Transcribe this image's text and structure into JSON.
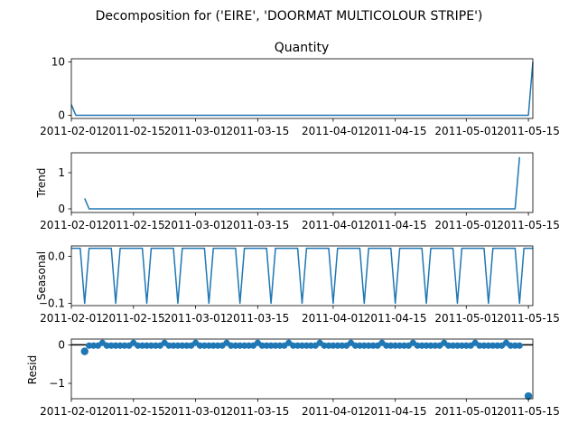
{
  "figure": {
    "suptitle": "Decomposition for ('EIRE', 'DOORMAT MULTICOLOUR STRIPE')"
  },
  "colors": {
    "series": "#1f77b4",
    "axis": "#000000",
    "background": "#ffffff"
  },
  "chart_data": [
    {
      "type": "line",
      "panel": "observed",
      "title": "Quantity",
      "ylabel": "",
      "xlim": [
        "2011-02-01",
        "2011-05-16"
      ],
      "ylim": [
        -0.6,
        10.6
      ],
      "yticks": [
        0,
        10
      ],
      "xticks": [
        "2011-02-01",
        "2011-02-15",
        "2011-03-01",
        "2011-03-15",
        "2011-04-01",
        "2011-04-15",
        "2011-05-01",
        "2011-05-15"
      ],
      "grid": false,
      "points": [
        [
          "2011-02-01",
          2
        ],
        [
          "2011-02-02",
          0
        ],
        [
          "2011-05-15",
          0
        ],
        [
          "2011-05-16",
          10
        ]
      ]
    },
    {
      "type": "line",
      "panel": "trend",
      "title": "",
      "ylabel": "Trend",
      "xlim": [
        "2011-02-01",
        "2011-05-16"
      ],
      "ylim": [
        -0.1,
        1.55
      ],
      "yticks": [
        0,
        1
      ],
      "xticks": [
        "2011-02-01",
        "2011-02-15",
        "2011-03-01",
        "2011-03-15",
        "2011-04-01",
        "2011-04-15",
        "2011-05-01",
        "2011-05-15"
      ],
      "grid": false,
      "points": [
        [
          "2011-02-04",
          0.29
        ],
        [
          "2011-02-05",
          0
        ],
        [
          "2011-05-12",
          0
        ],
        [
          "2011-05-13",
          1.43
        ]
      ]
    },
    {
      "type": "line",
      "panel": "seasonal",
      "title": "",
      "ylabel": "Seasonal",
      "xlim": [
        "2011-02-01",
        "2011-05-16"
      ],
      "ylim": [
        -0.105,
        0.022
      ],
      "yticks": [
        0.0,
        -0.1
      ],
      "ytick_labels": [
        "0.0",
        "−0.1"
      ],
      "xticks": [
        "2011-02-01",
        "2011-02-15",
        "2011-03-01",
        "2011-03-15",
        "2011-04-01",
        "2011-04-15",
        "2011-05-01",
        "2011-05-15"
      ],
      "grid": false,
      "period_days": 7,
      "pattern": [
        0.017,
        0.017,
        0.017,
        -0.1,
        0.017,
        0.017,
        0.017
      ],
      "start": "2011-02-01",
      "end": "2011-05-16"
    },
    {
      "type": "scatter",
      "panel": "resid",
      "title": "",
      "ylabel": "Resid",
      "xlim": [
        "2011-02-01",
        "2011-05-16"
      ],
      "ylim": [
        -1.4,
        0.15
      ],
      "yticks": [
        0,
        -1
      ],
      "ytick_labels": [
        "0",
        "−1"
      ],
      "xticks": [
        "2011-02-01",
        "2011-02-15",
        "2011-03-01",
        "2011-03-15",
        "2011-04-01",
        "2011-04-15",
        "2011-05-01",
        "2011-05-15"
      ],
      "grid": false,
      "baseline": 0,
      "range": [
        "2011-02-04",
        "2011-05-13"
      ],
      "default_value": -0.02,
      "bump_value": 0.05,
      "bump_period_days": 7,
      "bump_first": "2011-02-08",
      "overrides": [
        [
          "2011-02-04",
          -0.17
        ],
        [
          "2011-05-15",
          -1.33
        ]
      ]
    }
  ]
}
